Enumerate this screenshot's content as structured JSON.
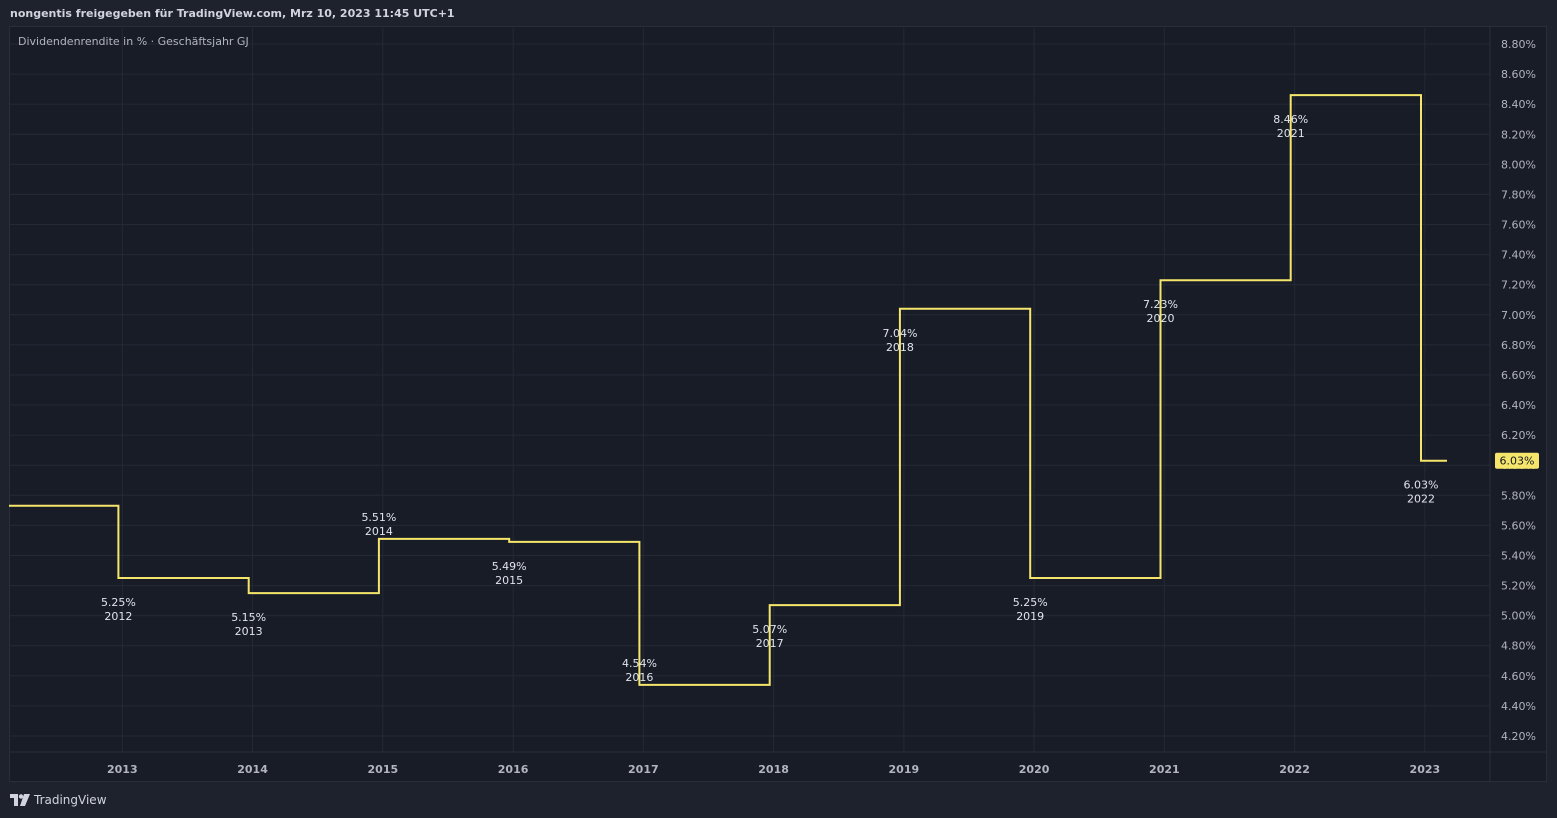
{
  "header": {
    "title": "nongentis freigegeben für TradingView.com, Mrz 10, 2023 11:45 UTC+1"
  },
  "indicator": {
    "label": "Dividendenrendite in % · Geschäftsjahr GJ"
  },
  "footer": {
    "brand": "TradingView",
    "logo_icon": "tradingview-logo-icon"
  },
  "colors": {
    "line": "#f5e66b",
    "last_value_badge": "#f5e66b",
    "grid": "#252935",
    "background": "#181c27"
  },
  "chart_data": {
    "type": "line",
    "step": true,
    "title": "",
    "xlabel": "",
    "ylabel": "",
    "ylim": [
      4.1,
      8.9
    ],
    "xlim": [
      2012.13,
      2023.5
    ],
    "grid": true,
    "y_axis_position": "right",
    "x_ticks": [
      "2013",
      "2014",
      "2015",
      "2016",
      "2017",
      "2018",
      "2019",
      "2020",
      "2021",
      "2022",
      "2023"
    ],
    "y_ticks": [
      "4.20%",
      "4.40%",
      "4.60%",
      "4.80%",
      "5.00%",
      "5.20%",
      "5.40%",
      "5.60%",
      "5.80%",
      "6.00%",
      "6.20%",
      "6.40%",
      "6.60%",
      "6.80%",
      "7.00%",
      "7.20%",
      "7.40%",
      "7.60%",
      "7.80%",
      "8.00%",
      "8.20%",
      "8.40%",
      "8.60%",
      "8.80%"
    ],
    "series": [
      {
        "color": "#f5e66b",
        "segments": [
          {
            "x0": 2012.13,
            "x1": 2012.97,
            "y": 5.73
          },
          {
            "x0": 2012.97,
            "x1": 2013.97,
            "y": 5.25
          },
          {
            "x0": 2013.97,
            "x1": 2014.97,
            "y": 5.15
          },
          {
            "x0": 2014.97,
            "x1": 2015.97,
            "y": 5.51
          },
          {
            "x0": 2015.97,
            "x1": 2016.97,
            "y": 5.49
          },
          {
            "x0": 2016.97,
            "x1": 2017.97,
            "y": 4.54
          },
          {
            "x0": 2017.97,
            "x1": 2018.97,
            "y": 5.07
          },
          {
            "x0": 2018.97,
            "x1": 2019.97,
            "y": 7.04
          },
          {
            "x0": 2019.97,
            "x1": 2020.97,
            "y": 5.25
          },
          {
            "x0": 2020.97,
            "x1": 2021.97,
            "y": 7.23
          },
          {
            "x0": 2021.97,
            "x1": 2022.97,
            "y": 8.46
          },
          {
            "x0": 2022.97,
            "x1": 2023.17,
            "y": 6.03
          }
        ]
      }
    ],
    "data_labels": [
      {
        "x": 2012.97,
        "value": "5.25%",
        "year": "2012",
        "pos": "below",
        "y": 5.25
      },
      {
        "x": 2013.97,
        "value": "5.15%",
        "year": "2013",
        "pos": "below",
        "y": 5.15
      },
      {
        "x": 2014.97,
        "value": "5.51%",
        "year": "2014",
        "pos": "above",
        "y": 5.51
      },
      {
        "x": 2015.97,
        "value": "5.49%",
        "year": "2015",
        "pos": "below",
        "y": 5.49
      },
      {
        "x": 2016.97,
        "value": "4.54%",
        "year": "2016",
        "pos": "above",
        "y": 4.54
      },
      {
        "x": 2017.97,
        "value": "5.07%",
        "year": "2017",
        "pos": "below",
        "y": 5.07
      },
      {
        "x": 2018.97,
        "value": "7.04%",
        "year": "2018",
        "pos": "below",
        "y": 7.04
      },
      {
        "x": 2019.97,
        "value": "5.25%",
        "year": "2019",
        "pos": "below",
        "y": 5.25
      },
      {
        "x": 2020.97,
        "value": "7.23%",
        "year": "2020",
        "pos": "below",
        "y": 7.23
      },
      {
        "x": 2021.97,
        "value": "8.46%",
        "year": "2021",
        "pos": "below",
        "y": 8.46
      },
      {
        "x": 2022.97,
        "value": "6.03%",
        "year": "2022",
        "pos": "below",
        "y": 6.03
      }
    ],
    "last_value": "6.03%"
  }
}
